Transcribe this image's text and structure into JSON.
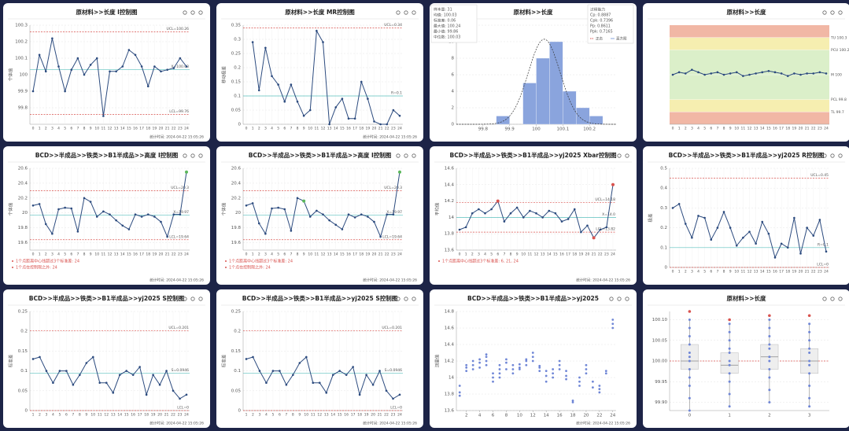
{
  "chart_data": [
    {
      "type": "control",
      "title": "原材料>>长度 I控制图",
      "ylabel": "个体值",
      "color": "#2b4a7e",
      "categories": [
        "0",
        "1",
        "2",
        "3",
        "4",
        "5",
        "6",
        "7",
        "8",
        "9",
        "10",
        "11",
        "12",
        "13",
        "14",
        "15",
        "16",
        "17",
        "18",
        "19",
        "20",
        "21",
        "22",
        "23",
        "24"
      ],
      "values": [
        99.9,
        100.12,
        100.02,
        100.22,
        100.05,
        99.9,
        100.03,
        100.1,
        100.0,
        100.06,
        100.1,
        99.75,
        100.02,
        100.02,
        100.05,
        100.15,
        100.12,
        100.05,
        99.93,
        100.05,
        100.02,
        100.03,
        100.04,
        100.1,
        100.05
      ],
      "ylim": [
        99.7,
        100.3
      ],
      "yticks": [
        99.8,
        99.9,
        100,
        100.1,
        100.2,
        100.3
      ],
      "limits": [
        {
          "value": 100.26,
          "label": "UCL=100.26",
          "color": "#d9534f"
        },
        {
          "value": 100.03,
          "label": "X=100.03",
          "color": "#5bc0be"
        },
        {
          "value": 99.76,
          "label": "LCL=99.76",
          "color": "#d9534f"
        }
      ],
      "footer": "统计时间: 2024-04-22 15:05:26"
    },
    {
      "type": "control",
      "title": "原材料>>长度 MR控制图",
      "ylabel": "移动极差",
      "color": "#2b4a7e",
      "categories": [
        "0",
        "1",
        "2",
        "3",
        "4",
        "5",
        "6",
        "7",
        "8",
        "9",
        "10",
        "11",
        "12",
        "13",
        "14",
        "15",
        "16",
        "17",
        "18",
        "19",
        "20",
        "21",
        "22",
        "23",
        "24"
      ],
      "values": [
        null,
        0.29,
        0.12,
        0.27,
        0.17,
        0.14,
        0.08,
        0.14,
        0.08,
        0.03,
        0.05,
        0.33,
        0.29,
        0.0,
        0.06,
        0.09,
        0.02,
        0.02,
        0.15,
        0.09,
        0.01,
        0.0,
        0.0,
        0.05,
        0.03
      ],
      "ylim": [
        0,
        0.35
      ],
      "yticks": [
        0,
        0.05,
        0.1,
        0.15,
        0.2,
        0.25,
        0.3,
        0.35
      ],
      "limits": [
        {
          "value": 0.34,
          "label": "UCL=0.34",
          "color": "#d9534f"
        },
        {
          "value": 0.1,
          "label": "R=0.1",
          "color": "#5bc0be"
        }
      ],
      "footer": "统计时间: 2024-04-22 15:05:26"
    },
    {
      "type": "histogram",
      "title": "原材料>>长度",
      "color": "#8aa4dd",
      "bins": [
        99.8,
        99.85,
        99.9,
        99.95,
        100.0,
        100.05,
        100.1,
        100.15,
        100.2,
        100.25
      ],
      "counts": [
        0,
        1,
        0,
        5,
        8,
        10,
        4,
        2,
        1
      ],
      "curve": {
        "mean": 100.03,
        "sd": 0.06
      },
      "xlim": [
        99.7,
        100.3
      ],
      "xticks": [
        99.8,
        99.9,
        100,
        100.1,
        100.2
      ],
      "ylim": [
        0,
        12
      ],
      "yticks": [
        0,
        2,
        4,
        6,
        8,
        10,
        12
      ],
      "stats": [
        "样本量: 31",
        "均值: 100.03",
        "标准差: 0.06",
        "最大值: 100.24",
        "最小值: 99.86",
        "中位数: 100.03"
      ],
      "indices": [
        "过程能力",
        "Cp: 0.8887",
        "Cpk: 0.7396",
        "Pp: 0.8611",
        "Ppk: 0.7165"
      ],
      "legend": [
        "正态",
        "直方图"
      ]
    },
    {
      "type": "band",
      "title": "原材料>>长度",
      "color": "#2b4a7e",
      "categories": [
        "0",
        "1",
        "2",
        "3",
        "4",
        "5",
        "6",
        "7",
        "8",
        "9",
        "10",
        "11",
        "12",
        "13",
        "14",
        "15",
        "16",
        "17",
        "18",
        "19",
        "20",
        "21",
        "22",
        "23",
        "24"
      ],
      "values": [
        100.0,
        100.02,
        100.01,
        100.04,
        100.02,
        100.0,
        100.01,
        100.02,
        100.0,
        100.01,
        100.02,
        99.99,
        100.0,
        100.01,
        100.02,
        100.03,
        100.02,
        100.01,
        99.99,
        100.01,
        100.0,
        100.01,
        100.01,
        100.02,
        100.01
      ],
      "ylim": [
        99.6,
        100.4
      ],
      "zones": [
        {
          "from": 100.3,
          "to": 100.4,
          "color": "#f1b7a5"
        },
        {
          "from": 100.2,
          "to": 100.3,
          "color": "#f6eeb0"
        },
        {
          "from": 99.8,
          "to": 100.2,
          "color": "#dbefc9"
        },
        {
          "from": 99.7,
          "to": 99.8,
          "color": "#f6eeb0"
        },
        {
          "from": 99.6,
          "to": 99.7,
          "color": "#f1b7a5"
        }
      ],
      "marks": [
        {
          "value": 100.3,
          "label": "TU 100.3"
        },
        {
          "value": 100.2,
          "label": "PCU 100.2"
        },
        {
          "value": 100.0,
          "label": "M 100"
        },
        {
          "value": 99.8,
          "label": "PCL 99.8"
        },
        {
          "value": 99.7,
          "label": "TL 99.7"
        }
      ]
    },
    {
      "type": "control",
      "title": "BCD>>半成品>>铁类>>B1半成品>>高度 I控制图",
      "ylabel": "个体值",
      "color": "#2b4a7e",
      "categories": [
        "0",
        "1",
        "2",
        "3",
        "4",
        "5",
        "6",
        "7",
        "8",
        "9",
        "10",
        "11",
        "12",
        "13",
        "14",
        "15",
        "16",
        "17",
        "18",
        "19",
        "20",
        "21",
        "22",
        "23",
        "24"
      ],
      "values": [
        20.1,
        20.12,
        19.85,
        19.72,
        20.05,
        20.07,
        20.06,
        19.75,
        20.2,
        20.15,
        19.95,
        20.02,
        19.98,
        19.9,
        19.83,
        19.78,
        19.98,
        19.95,
        19.98,
        19.95,
        19.88,
        19.68,
        19.98,
        19.98,
        20.55
      ],
      "flags": [
        {
          "index": 24,
          "color": "#5cb85c"
        }
      ],
      "ylim": [
        19.5,
        20.6
      ],
      "yticks": [
        19.6,
        19.8,
        20,
        20.2,
        20.4,
        20.6
      ],
      "limits": [
        {
          "value": 20.3,
          "label": "UCL=20.3",
          "color": "#d9534f"
        },
        {
          "value": 19.97,
          "label": "X=19.97",
          "color": "#5bc0be"
        },
        {
          "value": 19.64,
          "label": "LCL=19.64",
          "color": "#d9534f"
        }
      ],
      "notes": [
        "1个点距离中心线超过3个标准差: 24",
        "1个点在控制限之外: 24"
      ],
      "footer": "统计时间: 2024-04-22 15:05:26"
    },
    {
      "type": "control",
      "title": "BCD>>半成品>>铁类>>B1半成品>>高度 I控制图",
      "ylabel": "个体值",
      "color": "#2b4a7e",
      "categories": [
        "0",
        "1",
        "2",
        "3",
        "4",
        "5",
        "6",
        "7",
        "8",
        "9",
        "10",
        "11",
        "12",
        "13",
        "14",
        "15",
        "16",
        "17",
        "18",
        "19",
        "20",
        "21",
        "22",
        "23",
        "24"
      ],
      "values": [
        20.1,
        20.13,
        19.86,
        19.72,
        20.06,
        20.07,
        20.05,
        19.76,
        20.2,
        20.16,
        19.95,
        20.03,
        19.98,
        19.9,
        19.84,
        19.78,
        19.98,
        19.94,
        19.98,
        19.95,
        19.88,
        19.68,
        19.98,
        19.98,
        20.55
      ],
      "flags": [
        {
          "index": 9,
          "color": "#5cb85c"
        },
        {
          "index": 24,
          "color": "#5cb85c"
        }
      ],
      "ylim": [
        19.5,
        20.6
      ],
      "yticks": [
        19.6,
        19.8,
        20,
        20.2,
        20.4,
        20.6
      ],
      "limits": [
        {
          "value": 20.3,
          "label": "UCL=20.3",
          "color": "#d9534f"
        },
        {
          "value": 19.97,
          "label": "X=19.97",
          "color": "#5bc0be"
        },
        {
          "value": 19.64,
          "label": "LCL=19.64",
          "color": "#d9534f"
        }
      ],
      "notes": [
        "1个点距离中心线超过3个标准差: 24",
        "1个点在控制限之外: 24"
      ],
      "footer": "统计时间: 2024-04-22 15:05:26"
    },
    {
      "type": "control",
      "title": "BCD>>半成品>>铁类>>B1半成品>>yj2025 Xbar控制图",
      "ylabel": "平均值",
      "color": "#2b4a7e",
      "categories": [
        "0",
        "1",
        "2",
        "3",
        "4",
        "5",
        "6",
        "7",
        "8",
        "9",
        "10",
        "11",
        "12",
        "13",
        "14",
        "15",
        "16",
        "17",
        "18",
        "19",
        "20",
        "21",
        "22",
        "23",
        "24"
      ],
      "values": [
        13.85,
        13.88,
        14.05,
        14.1,
        14.05,
        14.1,
        14.2,
        13.95,
        14.05,
        14.12,
        14.0,
        14.08,
        14.05,
        14.0,
        14.08,
        14.05,
        13.95,
        13.98,
        14.1,
        13.82,
        13.9,
        13.75,
        13.85,
        13.88,
        14.4
      ],
      "flags": [
        {
          "index": 6,
          "color": "#d9534f"
        },
        {
          "index": 21,
          "color": "#d9534f"
        },
        {
          "index": 24,
          "color": "#d9534f"
        }
      ],
      "ylim": [
        13.6,
        14.6
      ],
      "yticks": [
        13.6,
        13.8,
        14,
        14.2,
        14.4,
        14.6
      ],
      "limits": [
        {
          "value": 14.18,
          "label": "UCL=14.18",
          "color": "#d9534f"
        },
        {
          "value": 14.0,
          "label": "X=14.0",
          "color": "#5bc0be"
        },
        {
          "value": 13.82,
          "label": "LCL=13.82",
          "color": "#d9534f"
        }
      ],
      "notes": [
        "1个点距离中心线超过3个标准差: 6, 21, 24"
      ],
      "footer": "统计时间: 2024-04-22 15:05:26"
    },
    {
      "type": "control",
      "title": "BCD>>半成品>>铁类>>B1半成品>>yj2025 R控制图",
      "ylabel": "极差",
      "color": "#2b4a7e",
      "categories": [
        "0",
        "1",
        "2",
        "3",
        "4",
        "5",
        "6",
        "7",
        "8",
        "9",
        "10",
        "11",
        "12",
        "13",
        "14",
        "15",
        "16",
        "17",
        "18",
        "19",
        "20",
        "21",
        "22",
        "23",
        "24"
      ],
      "values": [
        0.3,
        0.32,
        0.22,
        0.15,
        0.26,
        0.25,
        0.14,
        0.2,
        0.28,
        0.2,
        0.11,
        0.15,
        0.18,
        0.12,
        0.23,
        0.17,
        0.05,
        0.12,
        0.1,
        0.25,
        0.07,
        0.2,
        0.16,
        0.24,
        0.08
      ],
      "ylim": [
        0,
        0.5
      ],
      "yticks": [
        0,
        0.1,
        0.2,
        0.3,
        0.4,
        0.5
      ],
      "limits": [
        {
          "value": 0.45,
          "label": "UCL=0.45",
          "color": "#d9534f"
        },
        {
          "value": 0.1,
          "label": "R=0.1",
          "color": "#5bc0be"
        },
        {
          "value": 0,
          "label": "LCL=0",
          "color": "#d9534f"
        }
      ]
    },
    {
      "type": "control",
      "title": "BCD>>半成品>>铁类>>B1半成品>>yj2025 S控制图",
      "ylabel": "标准差",
      "color": "#2b4a7e",
      "categories": [
        "1",
        "2",
        "3",
        "4",
        "5",
        "6",
        "7",
        "8",
        "9",
        "10",
        "11",
        "12",
        "13",
        "14",
        "15",
        "16",
        "17",
        "18",
        "19",
        "20",
        "21",
        "22",
        "23",
        "24"
      ],
      "values": [
        0.13,
        0.135,
        0.1,
        0.07,
        0.1,
        0.1,
        0.065,
        0.09,
        0.12,
        0.135,
        0.07,
        0.07,
        0.045,
        0.09,
        0.1,
        0.09,
        0.11,
        0.04,
        0.09,
        0.065,
        0.1,
        0.05,
        0.03,
        0.04
      ],
      "ylim": [
        0,
        0.25
      ],
      "yticks": [
        0,
        0.05,
        0.1,
        0.15,
        0.2,
        0.25
      ],
      "limits": [
        {
          "value": 0.201,
          "label": "UCL=0.201",
          "color": "#d9534f"
        },
        {
          "value": 0.0946,
          "label": "S=0.0946",
          "color": "#5bc0be"
        },
        {
          "value": 0,
          "label": "LCL=0",
          "color": "#d9534f"
        }
      ],
      "footer": "统计时间: 2024-04-22 15:05:26"
    },
    {
      "type": "control",
      "title": "BCD>>半成品>>铁类>>B1半成品>>yj2025 S控制图",
      "ylabel": "标准差",
      "color": "#2b4a7e",
      "categories": [
        "1",
        "2",
        "3",
        "4",
        "5",
        "6",
        "7",
        "8",
        "9",
        "10",
        "11",
        "12",
        "13",
        "14",
        "15",
        "16",
        "17",
        "18",
        "19",
        "20",
        "21",
        "22",
        "23",
        "24"
      ],
      "values": [
        0.13,
        0.135,
        0.1,
        0.07,
        0.1,
        0.1,
        0.065,
        0.09,
        0.12,
        0.135,
        0.07,
        0.07,
        0.045,
        0.09,
        0.1,
        0.09,
        0.11,
        0.04,
        0.09,
        0.065,
        0.1,
        0.05,
        0.03,
        0.04
      ],
      "ylim": [
        0,
        0.25
      ],
      "yticks": [
        0,
        0.05,
        0.1,
        0.15,
        0.2,
        0.25
      ],
      "limits": [
        {
          "value": 0.201,
          "label": "UCL=0.201",
          "color": "#d9534f"
        },
        {
          "value": 0.0946,
          "label": "S=0.0946",
          "color": "#5bc0be"
        },
        {
          "value": 0,
          "label": "LCL=0",
          "color": "#d9534f"
        }
      ],
      "footer": "统计时间: 2024-04-22 15:05:26"
    },
    {
      "type": "strip",
      "title": "BCD>>半成品>>铁类>>B1半成品>>yj2025",
      "ylabel": "测量值",
      "color": "#6f86d6",
      "x": [
        1,
        2,
        3,
        4,
        5,
        6,
        7,
        8,
        9,
        10,
        11,
        12,
        13,
        14,
        15,
        16,
        17,
        18,
        19,
        20,
        21,
        22,
        23,
        24
      ],
      "groups": [
        [
          13.78,
          13.82,
          13.9
        ],
        [
          14.08,
          14.12,
          14.15
        ],
        [
          14.1,
          14.15,
          14.2
        ],
        [
          14.12,
          14.18,
          14.22
        ],
        [
          14.15,
          14.2,
          14.25,
          14.28
        ],
        [
          13.95,
          14.0,
          14.05
        ],
        [
          14.0,
          14.05,
          14.1,
          14.15
        ],
        [
          14.1,
          14.18,
          14.22
        ],
        [
          14.05,
          14.1,
          14.15
        ],
        [
          14.1,
          14.12,
          14.16
        ],
        [
          14.15,
          14.2,
          14.22
        ],
        [
          14.2,
          14.25,
          14.3
        ],
        [
          14.08,
          14.12,
          14.14
        ],
        [
          13.95,
          14.02,
          14.08
        ],
        [
          14.0,
          14.05,
          14.1
        ],
        [
          14.1,
          14.15,
          14.2
        ],
        [
          13.98,
          14.02,
          14.08
        ],
        [
          13.7,
          13.72
        ],
        [
          13.9,
          13.95,
          14.0
        ],
        [
          14.05,
          14.1,
          14.15
        ],
        [
          13.88,
          13.95
        ],
        [
          13.82,
          13.86,
          13.9
        ],
        [
          14.05,
          14.08
        ],
        [
          14.6,
          14.65,
          14.7
        ]
      ],
      "xlim": [
        0.5,
        24.5
      ],
      "xticks": [
        2,
        4,
        6,
        8,
        10,
        12,
        14,
        16,
        18,
        20,
        22,
        24
      ],
      "ylim": [
        13.6,
        14.8
      ],
      "yticks": [
        13.6,
        13.8,
        14,
        14.2,
        14.4,
        14.6,
        14.8
      ],
      "footer": "统计时间: 2024-04-22 15:05:26"
    },
    {
      "type": "box",
      "title": "原材料>>长度",
      "color": "#6f86d6",
      "categories": [
        "0",
        "1",
        "2",
        "3"
      ],
      "boxes": [
        {
          "min": 99.88,
          "q1": 99.98,
          "median": 100.0,
          "q3": 100.04,
          "max": 100.1,
          "outlier": 100.12
        },
        {
          "min": 99.89,
          "q1": 99.97,
          "median": 99.99,
          "q3": 100.02,
          "max": 100.09,
          "outlier": 100.1
        },
        {
          "min": 99.9,
          "q1": 99.98,
          "median": 100.01,
          "q3": 100.04,
          "max": 100.1,
          "outlier": 100.11
        },
        {
          "min": 99.89,
          "q1": 99.97,
          "median": 100.0,
          "q3": 100.03,
          "max": 100.09,
          "outlier": 100.11
        }
      ],
      "points": [
        [
          99.88,
          99.91,
          99.94,
          99.96,
          99.98,
          100.0,
          100.01,
          100.02,
          100.04,
          100.06,
          100.08,
          100.1
        ],
        [
          99.89,
          99.92,
          99.95,
          99.97,
          99.99,
          100.0,
          100.02,
          100.03,
          100.05,
          100.07,
          100.09
        ],
        [
          99.9,
          99.93,
          99.96,
          99.98,
          100.0,
          100.01,
          100.03,
          100.04,
          100.06,
          100.08,
          100.1
        ],
        [
          99.89,
          99.91,
          99.94,
          99.97,
          99.99,
          100.0,
          100.02,
          100.03,
          100.05,
          100.07,
          100.09
        ]
      ],
      "reference": 100.0,
      "ylim": [
        99.88,
        100.12
      ],
      "yticks": [
        {
          "value": 99.9,
          "label": "99.90"
        },
        {
          "value": 99.95,
          "label": "99.95"
        },
        {
          "value": 100,
          "label": "100.00"
        },
        {
          "value": 100.05,
          "label": "100.05"
        },
        {
          "value": 100.1,
          "label": "100.10"
        }
      ]
    }
  ]
}
